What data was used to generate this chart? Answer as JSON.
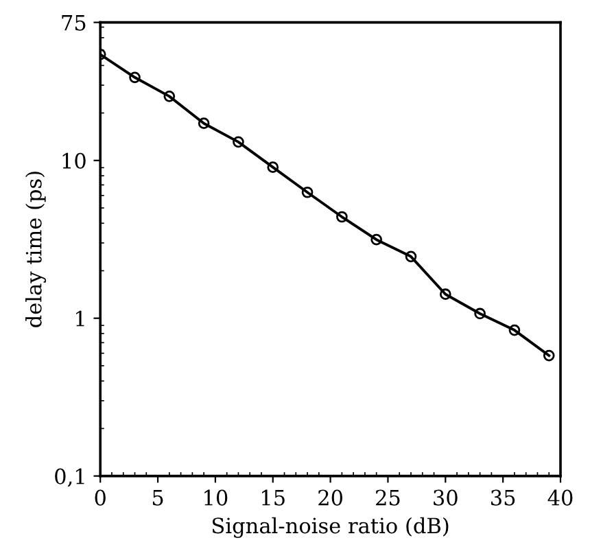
{
  "chart_data": {
    "type": "line",
    "xlabel": "Signal-noise ratio (dB)",
    "ylabel": "delay time (ps)",
    "x": [
      0,
      3,
      6,
      9,
      12,
      15,
      18,
      21,
      24,
      27,
      30,
      33,
      36,
      39
    ],
    "series": [
      {
        "color": "#000000",
        "values": [
          47,
          33.6,
          25.5,
          17.2,
          13.1,
          9.06,
          6.28,
          4.39,
          3.15,
          2.46,
          1.42,
          1.07,
          0.84,
          0.58
        ]
      }
    ],
    "log": "y",
    "xlim": [
      0,
      40
    ],
    "xticks": [
      0,
      5,
      10,
      15,
      20,
      25,
      30,
      35,
      40
    ],
    "ylim": [
      0.1,
      75
    ],
    "yticks": [
      {
        "value": 0.1,
        "label": "0,1"
      },
      1,
      10,
      75
    ],
    "marker": "circle",
    "line_style": "solid",
    "grid": false,
    "legend": false
  }
}
